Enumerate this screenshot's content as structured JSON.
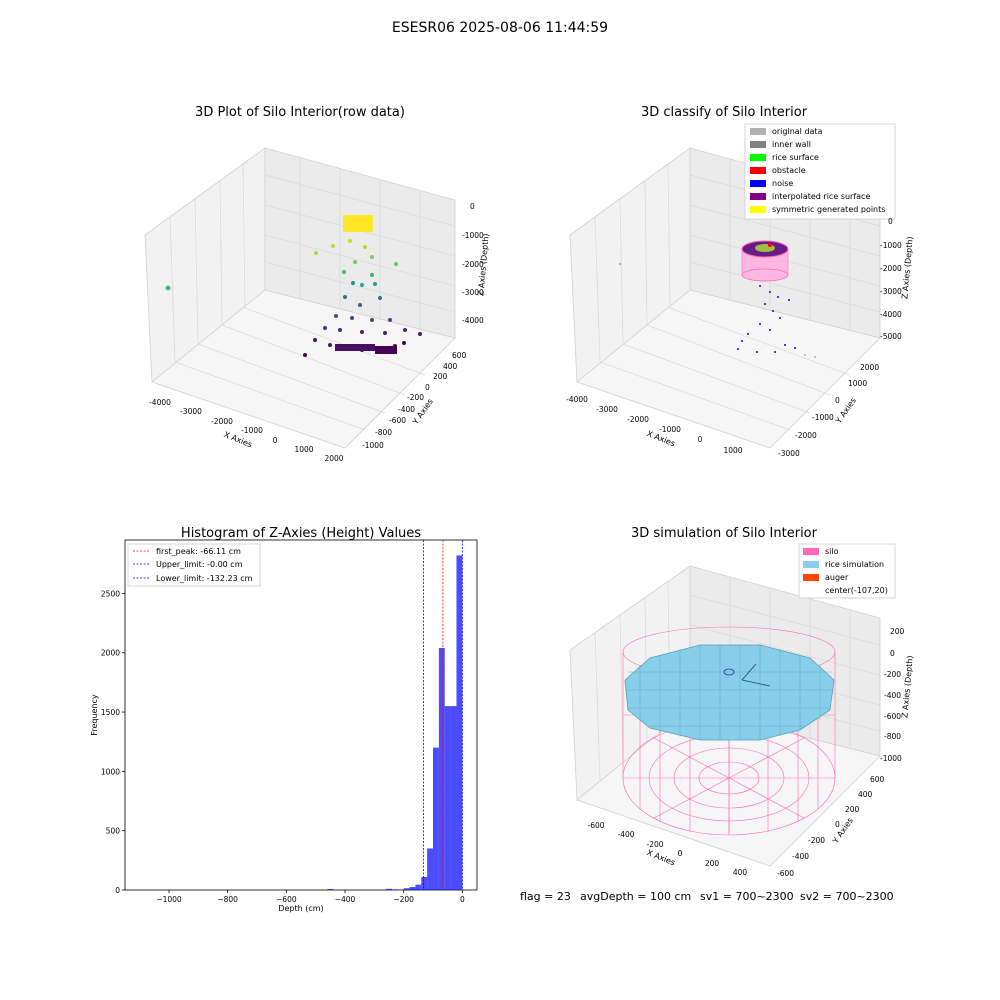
{
  "figure": {
    "suptitle": "ESESR06 2025-08-06 11:44:59",
    "footer": {
      "flag": "flag = 23",
      "avg": "avgDepth = 100 cm",
      "sv1": "sv1 = 700~2300",
      "sv2": "sv2 = 700~2300"
    }
  },
  "panels": {
    "raw": {
      "title": "3D Plot of Silo Interior(row data)",
      "xlabel": "X Axies",
      "ylabel": "Y Axies",
      "zlabel": "Z Axies (Depth)",
      "xticks": [
        "-4000",
        "-3000",
        "-2000",
        "-1000",
        "0",
        "1000",
        "2000"
      ],
      "yticks": [
        "600",
        "400",
        "200",
        "0",
        "-200",
        "-400",
        "-600",
        "-800",
        "-1000"
      ],
      "zticks": [
        "0",
        "-1000",
        "-2000",
        "-3000",
        "-4000"
      ]
    },
    "classify": {
      "title": "3D classify of Silo Interior",
      "xlabel": "X Axies",
      "ylabel": "Y Axies",
      "zlabel": "Z Axies (Depth)",
      "xticks": [
        "-4000",
        "-3000",
        "-2000",
        "-1000",
        "0",
        "1000"
      ],
      "yticks": [
        "2000",
        "1000",
        "0",
        "-1000",
        "-2000",
        "-3000"
      ],
      "zticks": [
        "0",
        "-1000",
        "-2000",
        "-3000",
        "-4000",
        "-5000"
      ],
      "legend": [
        {
          "label": "original data",
          "color": "#b0b0b0"
        },
        {
          "label": "inner wall",
          "color": "#808080"
        },
        {
          "label": "rice surface",
          "color": "#00ff00"
        },
        {
          "label": "obstacle",
          "color": "#ff0000"
        },
        {
          "label": "noise",
          "color": "#0000ff"
        },
        {
          "label": "interpolated rice surface",
          "color": "#800080"
        },
        {
          "label": "symmetric generated points",
          "color": "#ffff00"
        }
      ]
    },
    "simulation": {
      "title": "3D simulation of Silo Interior",
      "xlabel": "X Axies",
      "ylabel": "Y Axies",
      "zlabel": "Z Axies (Depth)",
      "xticks": [
        "-600",
        "-400",
        "-200",
        "0",
        "200",
        "400"
      ],
      "yticks": [
        "600",
        "400",
        "200",
        "0",
        "-200",
        "-400",
        "-600"
      ],
      "zticks": [
        "200",
        "0",
        "-200",
        "-400",
        "-600",
        "-800",
        "-1000"
      ],
      "legend": [
        {
          "label": "silo",
          "color": "#ff69b4"
        },
        {
          "label": "rice simulation",
          "color": "#87ceeb"
        },
        {
          "label": "auger",
          "color": "#ff4500"
        },
        {
          "label": "center(-107,20)",
          "color": ""
        }
      ]
    }
  },
  "chart_data": {
    "type": "bar",
    "title": "Histogram of Z-Axies (Height) Values",
    "xlabel": "Depth (cm)",
    "ylabel": "Frequency",
    "xlim": [
      -1150,
      50
    ],
    "ylim": [
      0,
      2950
    ],
    "xticks": [
      -1000,
      -800,
      -600,
      -400,
      -200,
      0
    ],
    "yticks": [
      0,
      500,
      1000,
      1500,
      2000,
      2500
    ],
    "bar_color": "#0000ff",
    "bins": [
      {
        "x0": -460,
        "x1": -440,
        "count": 8
      },
      {
        "x0": -260,
        "x1": -240,
        "count": 10
      },
      {
        "x0": -240,
        "x1": -220,
        "count": 5
      },
      {
        "x0": -200,
        "x1": -180,
        "count": 15
      },
      {
        "x0": -180,
        "x1": -160,
        "count": 25
      },
      {
        "x0": -160,
        "x1": -140,
        "count": 45
      },
      {
        "x0": -140,
        "x1": -120,
        "count": 110
      },
      {
        "x0": -120,
        "x1": -100,
        "count": 350
      },
      {
        "x0": -100,
        "x1": -80,
        "count": 1200
      },
      {
        "x0": -80,
        "x1": -60,
        "count": 2040
      },
      {
        "x0": -60,
        "x1": -40,
        "count": 1550
      },
      {
        "x0": -40,
        "x1": -20,
        "count": 1550
      },
      {
        "x0": -20,
        "x1": 0,
        "count": 2820
      }
    ],
    "lines": [
      {
        "label": "first_peak: -66.11 cm",
        "value": -66.11,
        "color": "#ff0000"
      },
      {
        "label": "Upper_limit: -0.00 cm",
        "value": 0,
        "color": "#0000ff"
      },
      {
        "label": "Lower_limit: -132.23 cm",
        "value": -132.23,
        "color": "#0000ff"
      }
    ]
  }
}
